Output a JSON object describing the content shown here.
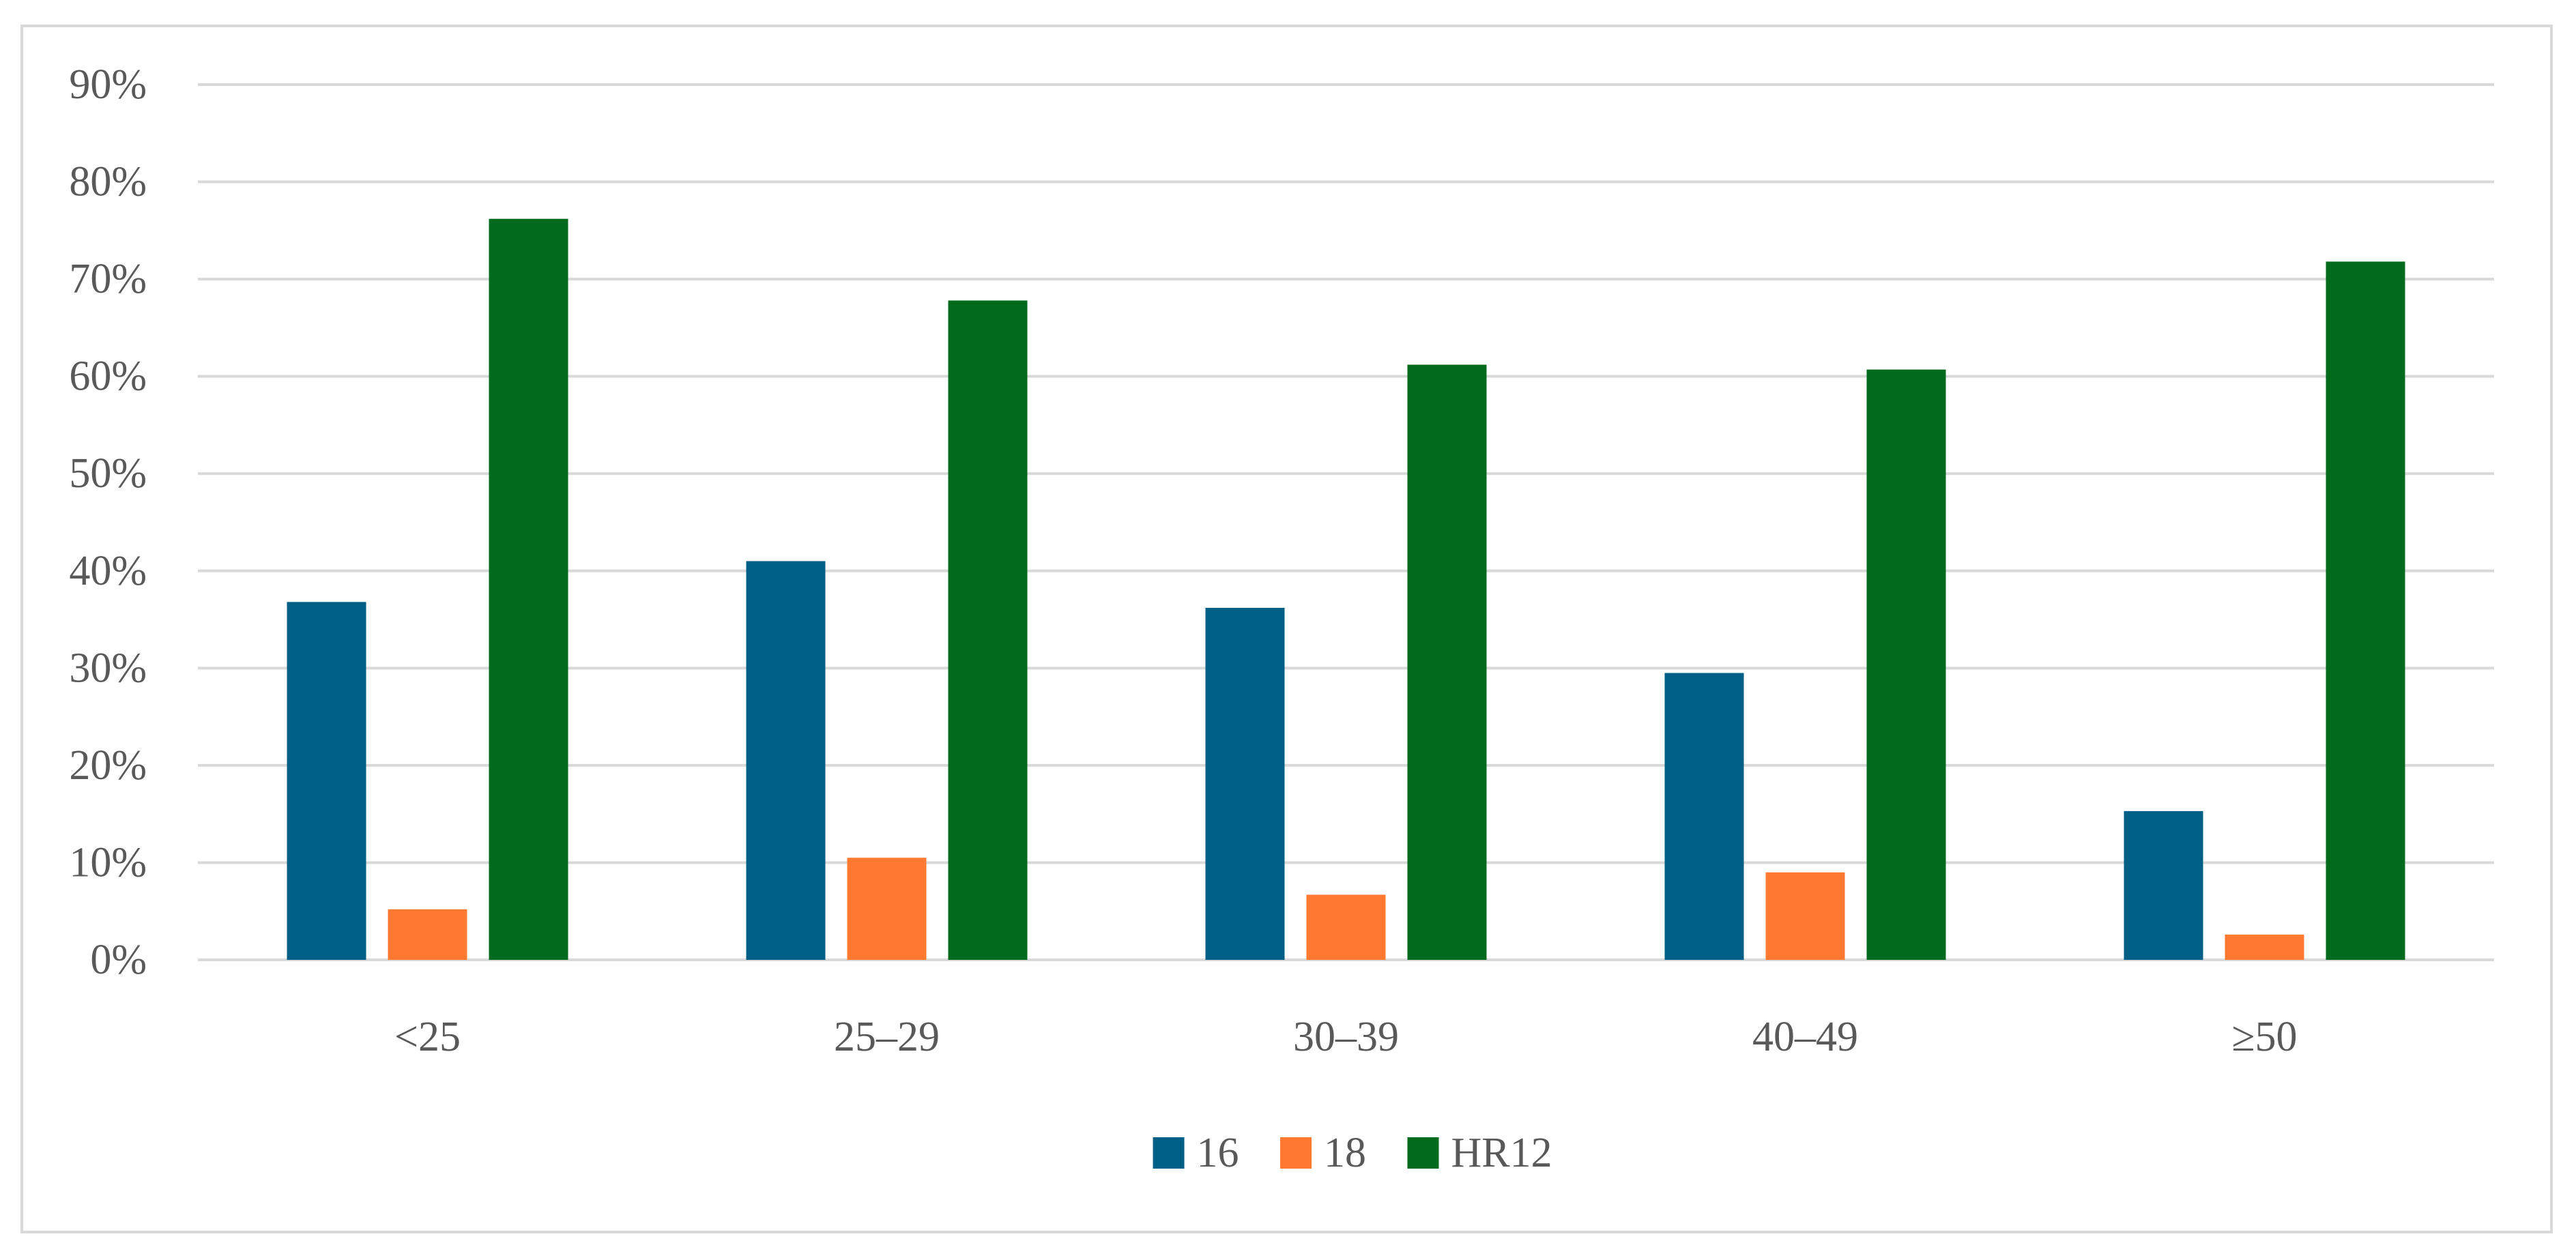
{
  "chart_data": {
    "type": "bar",
    "title": "",
    "xlabel": "",
    "ylabel": "",
    "categories": [
      "<25",
      "25–29",
      "30–39",
      "40–49",
      "≥50"
    ],
    "series": [
      {
        "name": "16",
        "color": "#005f87",
        "values": [
          36.8,
          41.0,
          36.2,
          29.5,
          15.3
        ]
      },
      {
        "name": "18",
        "color": "#ff7a30",
        "values": [
          5.2,
          10.5,
          6.7,
          9.0,
          2.6
        ]
      },
      {
        "name": "HR12",
        "color": "#006b1c",
        "values": [
          76.2,
          67.8,
          61.2,
          60.7,
          71.8
        ]
      }
    ],
    "ylim": [
      0,
      90
    ],
    "yticks": [
      0,
      10,
      20,
      30,
      40,
      50,
      60,
      70,
      80,
      90
    ],
    "ytick_labels": [
      "0%",
      "10%",
      "20%",
      "30%",
      "40%",
      "50%",
      "60%",
      "70%",
      "80%",
      "90%"
    ],
    "grid": true,
    "gridline_color": "#d9d9d9",
    "legend": "bottom-center"
  }
}
